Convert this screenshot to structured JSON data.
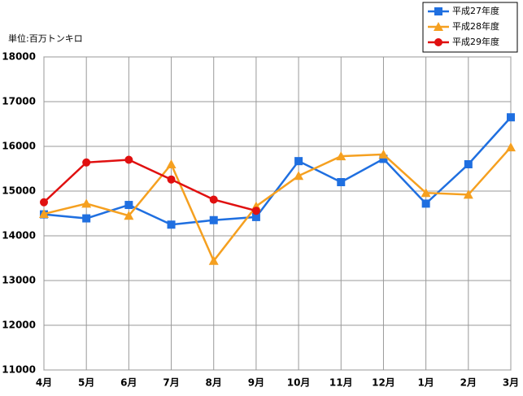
{
  "chart_data": {
    "type": "line",
    "unit_label": "単位:百万トンキロ",
    "categories": [
      "4月",
      "5月",
      "6月",
      "7月",
      "8月",
      "9月",
      "10月",
      "11月",
      "12月",
      "1月",
      "2月",
      "3月"
    ],
    "series": [
      {
        "name": "平成27年度",
        "color": "#1f6fe0",
        "marker": "square",
        "values": [
          14480,
          14390,
          14690,
          14250,
          14350,
          14420,
          15670,
          15200,
          15720,
          14720,
          15600,
          16650
        ]
      },
      {
        "name": "平成28年度",
        "color": "#f5a020",
        "marker": "triangle",
        "values": [
          14490,
          14720,
          14450,
          15600,
          13440,
          14660,
          15340,
          15780,
          15820,
          14960,
          14920,
          15980
        ]
      },
      {
        "name": "平成29年度",
        "color": "#e01010",
        "marker": "circle",
        "values": [
          14750,
          15640,
          15700,
          15260,
          14810,
          14560,
          null,
          null,
          null,
          null,
          null,
          null
        ]
      }
    ],
    "ylim": [
      11000,
      18000
    ],
    "yticks": [
      11000,
      12000,
      13000,
      14000,
      15000,
      16000,
      17000,
      18000
    ],
    "grid": true,
    "legend": "top-right"
  }
}
